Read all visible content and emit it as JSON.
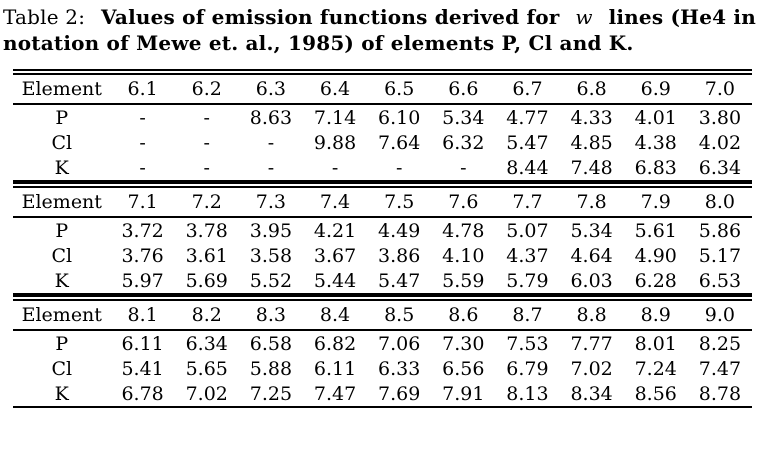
{
  "page": {
    "background_color": "#ffffff",
    "text_color": "#000000"
  },
  "caption": {
    "label": "Table 2:",
    "bold_pre": "Values of emission functions derived for",
    "italic_word": "w",
    "bold_post": "lines (He4 in",
    "line2": "notation of Mewe et. al., 1985) of elements P, Cl and K."
  },
  "chart_data": {
    "type": "table",
    "title": "Table 2: Values of emission functions derived for w lines (He4 in notation of Mewe et. al., 1985) of elements P, Cl and K.",
    "tables": [
      {
        "header": [
          "Element",
          "6.1",
          "6.2",
          "6.3",
          "6.4",
          "6.5",
          "6.6",
          "6.7",
          "6.8",
          "6.9",
          "7.0"
        ],
        "rows": [
          {
            "element": "P",
            "values": [
              "-",
              "-",
              "8.63",
              "7.14",
              "6.10",
              "5.34",
              "4.77",
              "4.33",
              "4.01",
              "3.80"
            ]
          },
          {
            "element": "Cl",
            "values": [
              "-",
              "-",
              "-",
              "9.88",
              "7.64",
              "6.32",
              "5.47",
              "4.85",
              "4.38",
              "4.02"
            ]
          },
          {
            "element": "K",
            "values": [
              "-",
              "-",
              "-",
              "-",
              "-",
              "-",
              "8.44",
              "7.48",
              "6.83",
              "6.34"
            ]
          }
        ]
      },
      {
        "header": [
          "Element",
          "7.1",
          "7.2",
          "7.3",
          "7.4",
          "7.5",
          "7.6",
          "7.7",
          "7.8",
          "7.9",
          "8.0"
        ],
        "rows": [
          {
            "element": "P",
            "values": [
              "3.72",
              "3.78",
              "3.95",
              "4.21",
              "4.49",
              "4.78",
              "5.07",
              "5.34",
              "5.61",
              "5.86"
            ]
          },
          {
            "element": "Cl",
            "values": [
              "3.76",
              "3.61",
              "3.58",
              "3.67",
              "3.86",
              "4.10",
              "4.37",
              "4.64",
              "4.90",
              "5.17"
            ]
          },
          {
            "element": "K",
            "values": [
              "5.97",
              "5.69",
              "5.52",
              "5.44",
              "5.47",
              "5.59",
              "5.79",
              "6.03",
              "6.28",
              "6.53"
            ]
          }
        ]
      },
      {
        "header": [
          "Element",
          "8.1",
          "8.2",
          "8.3",
          "8.4",
          "8.5",
          "8.6",
          "8.7",
          "8.8",
          "8.9",
          "9.0"
        ],
        "rows": [
          {
            "element": "P",
            "values": [
              "6.11",
              "6.34",
              "6.58",
              "6.82",
              "7.06",
              "7.30",
              "7.53",
              "7.77",
              "8.01",
              "8.25"
            ]
          },
          {
            "element": "Cl",
            "values": [
              "5.41",
              "5.65",
              "5.88",
              "6.11",
              "6.33",
              "6.56",
              "6.79",
              "7.02",
              "7.24",
              "7.47"
            ]
          },
          {
            "element": "K",
            "values": [
              "6.78",
              "7.02",
              "7.25",
              "7.47",
              "7.69",
              "7.91",
              "8.13",
              "8.34",
              "8.56",
              "8.78"
            ]
          }
        ]
      }
    ]
  }
}
